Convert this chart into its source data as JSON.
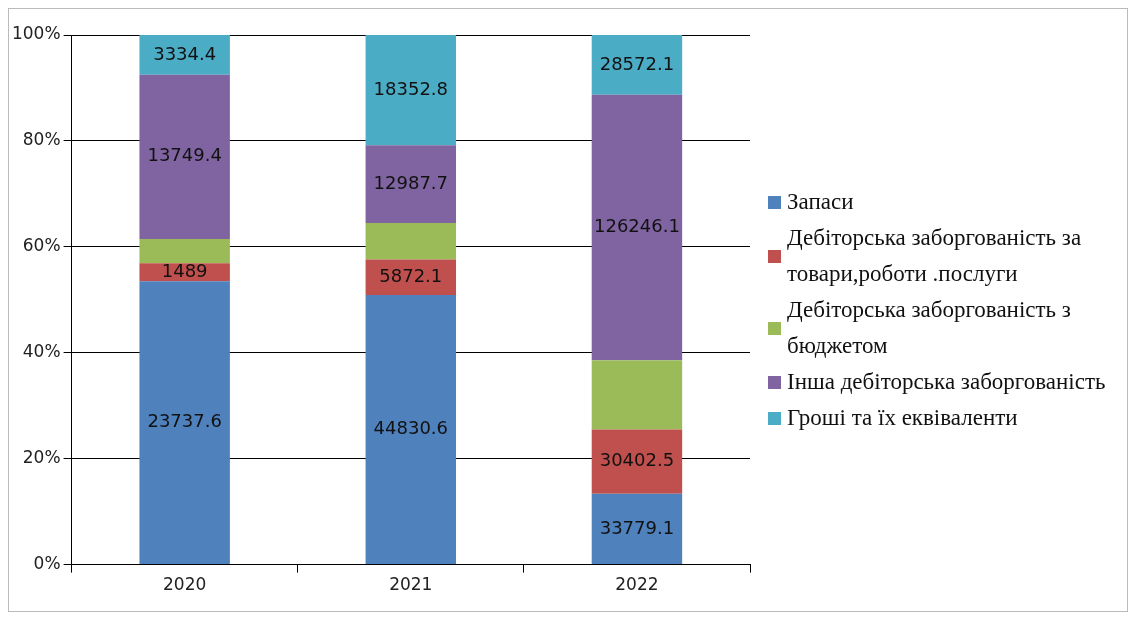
{
  "chart_data": {
    "type": "bar",
    "stacked": true,
    "categories": [
      "2020",
      "2021",
      "2022"
    ],
    "series": [
      {
        "name": "Запаси",
        "color": "#4f81bd",
        "values": [
          53.5,
          50.9,
          13.4
        ]
      },
      {
        "name": "Дебіторська заборгованість за товари,роботи .послуги",
        "color": "#c0504d",
        "values": [
          3.4,
          6.7,
          12.1
        ]
      },
      {
        "name": "Дебіторська заборгованість з бюджетом",
        "color": "#9bbb59",
        "values": [
          4.6,
          6.9,
          13.1
        ]
      },
      {
        "name": "Інша дебіторська заборгованість",
        "color": "#8064a2",
        "values": [
          31.0,
          14.7,
          50.1
        ]
      },
      {
        "name": "Гроші та їх еквіваленти",
        "color": "#4bacc6",
        "values": [
          7.5,
          20.8,
          11.3
        ]
      }
    ],
    "annotations": [
      "23737.6",
      "1489",
      "13749.4",
      "3334.4",
      "44830.6",
      "5872.1",
      "12987.7",
      "18352.8",
      "33779.1",
      "30402.5",
      "126246.1",
      "28572.1"
    ],
    "ylim": [
      0,
      100
    ],
    "yticks": [
      {
        "value": 0,
        "label": "0%"
      },
      {
        "value": 20,
        "label": "20%"
      },
      {
        "value": 40,
        "label": "40%"
      },
      {
        "value": 60,
        "label": "60%"
      },
      {
        "value": 80,
        "label": "80%"
      },
      {
        "value": 100,
        "label": "100%"
      }
    ],
    "grid": "y",
    "legend": "right"
  }
}
